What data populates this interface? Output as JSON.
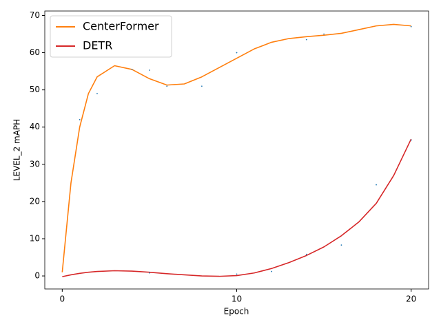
{
  "chart_data": {
    "type": "line",
    "xlabel": "Epoch",
    "ylabel": "LEVEL_2 mAPH",
    "xlim": [
      -1,
      21
    ],
    "ylim": [
      -3.5,
      71.2
    ],
    "xticks": [
      0,
      10,
      20
    ],
    "yticks": [
      0,
      10,
      20,
      30,
      40,
      50,
      60,
      70
    ],
    "grid": false,
    "legend": "upper left",
    "x": [
      0,
      0.5,
      1,
      1.5,
      2,
      3,
      4,
      5,
      6,
      7,
      8,
      9,
      10,
      11,
      12,
      13,
      14,
      15,
      16,
      17,
      18,
      19,
      20
    ],
    "series": [
      {
        "name": "CenterFormer",
        "color": "#ff7f0e",
        "values": [
          1,
          25,
          40,
          49,
          53.5,
          56.5,
          55.5,
          53,
          51.3,
          51.6,
          53.5,
          56,
          58.5,
          61,
          62.8,
          63.8,
          64.3,
          64.7,
          65.2,
          66.2,
          67.2,
          67.6,
          67.2
        ]
      },
      {
        "name": "DETR",
        "color": "#d62728",
        "values": [
          -0.2,
          0.3,
          0.7,
          1.0,
          1.2,
          1.4,
          1.3,
          1.0,
          0.6,
          0.3,
          0.0,
          -0.1,
          0.1,
          0.8,
          2.0,
          3.6,
          5.5,
          7.8,
          10.8,
          14.5,
          19.5,
          27,
          36.8
        ]
      }
    ],
    "points": {
      "color": "#1f77b4",
      "x": [
        1,
        2,
        4,
        5,
        6,
        8,
        10,
        14,
        15,
        20,
        5,
        10,
        12,
        14,
        16,
        18,
        20
      ],
      "y": [
        42,
        49,
        55.5,
        55.3,
        51,
        51,
        60,
        63.5,
        65,
        67,
        0.8,
        0.5,
        1.2,
        5.8,
        8.3,
        24.5,
        36.5
      ]
    }
  }
}
